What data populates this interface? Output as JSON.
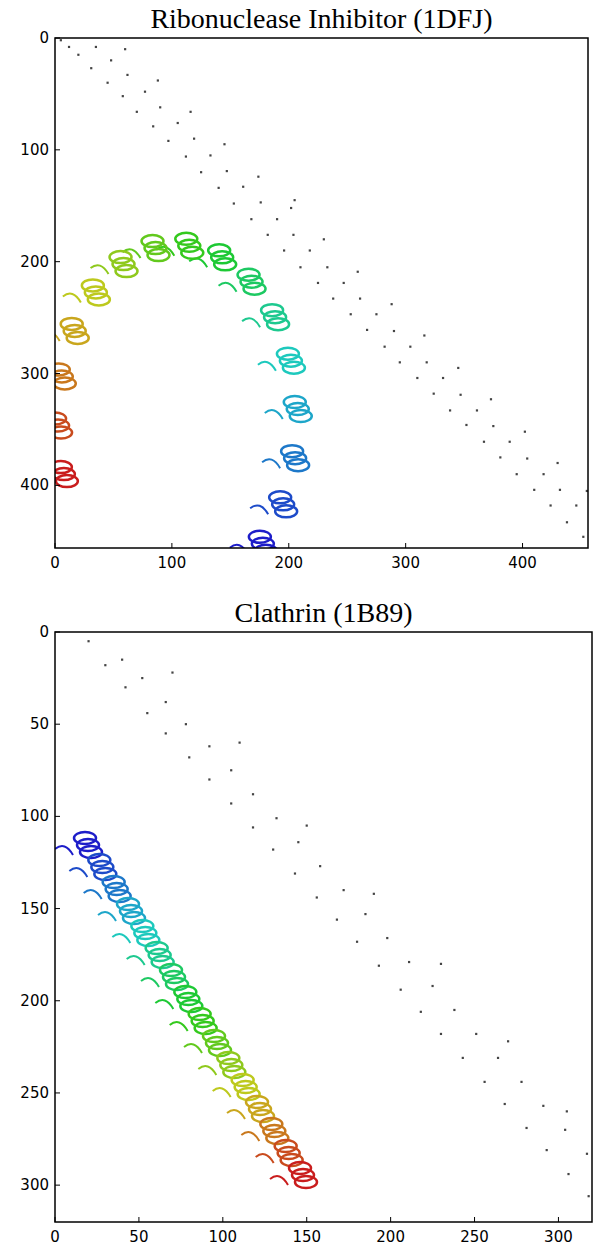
{
  "chart_data": [
    {
      "type": "scatter",
      "title": "Ribonuclease Inhibitor (1DFJ)",
      "color": "#444444",
      "marker": "square",
      "xlim": [
        0,
        456
      ],
      "ylim": [
        0,
        456
      ],
      "xticks": [
        0,
        100,
        200,
        300,
        400
      ],
      "yticks": [
        0,
        100,
        200,
        300,
        400
      ],
      "x": [
        5,
        12,
        20,
        31,
        45,
        58,
        70,
        84,
        97,
        112,
        125,
        140,
        153,
        168,
        182,
        196,
        210,
        225,
        238,
        253,
        267,
        282,
        295,
        310,
        324,
        338,
        352,
        367,
        381,
        395,
        410,
        424,
        438,
        452,
        35,
        48,
        62,
        77,
        90,
        105,
        119,
        133,
        147,
        161,
        176,
        190,
        204,
        218,
        233,
        247,
        261,
        275,
        290,
        304,
        318,
        332,
        347,
        361,
        375,
        389,
        404,
        418,
        432,
        446,
        60,
        88,
        116,
        145,
        174,
        202,
        230,
        259,
        288,
        316,
        345,
        373,
        402,
        430,
        455,
        205
      ],
      "y": [
        2,
        8,
        15,
        27,
        40,
        52,
        66,
        79,
        92,
        106,
        120,
        134,
        148,
        162,
        176,
        190,
        205,
        219,
        233,
        247,
        261,
        276,
        290,
        304,
        318,
        333,
        346,
        361,
        375,
        390,
        404,
        418,
        433,
        446,
        8,
        20,
        33,
        48,
        62,
        76,
        90,
        105,
        119,
        133,
        147,
        162,
        176,
        190,
        205,
        219,
        233,
        247,
        262,
        276,
        290,
        304,
        319,
        333,
        347,
        361,
        376,
        390,
        404,
        418,
        10,
        38,
        66,
        95,
        124,
        152,
        180,
        209,
        238,
        266,
        295,
        323,
        352,
        380,
        405,
        145
      ]
    },
    {
      "type": "scatter",
      "title": "Clathrin (1B89)",
      "color": "#444444",
      "marker": "square",
      "xlim": [
        0,
        320
      ],
      "ylim": [
        0,
        320
      ],
      "xticks": [
        0,
        50,
        100,
        150,
        200,
        250,
        300
      ],
      "yticks": [
        0,
        50,
        100,
        150,
        200,
        250,
        300
      ],
      "x": [
        20,
        30,
        42,
        55,
        66,
        80,
        92,
        105,
        118,
        130,
        143,
        156,
        168,
        180,
        193,
        206,
        218,
        230,
        243,
        256,
        268,
        281,
        293,
        306,
        318,
        40,
        52,
        66,
        78,
        92,
        105,
        118,
        132,
        145,
        158,
        172,
        185,
        198,
        211,
        225,
        238,
        251,
        264,
        278,
        291,
        304,
        317,
        70,
        110,
        150,
        190,
        230,
        270,
        305
      ],
      "y": [
        5,
        18,
        30,
        44,
        55,
        68,
        80,
        93,
        106,
        118,
        131,
        144,
        156,
        168,
        181,
        194,
        206,
        218,
        231,
        244,
        256,
        269,
        281,
        294,
        306,
        15,
        25,
        38,
        50,
        62,
        75,
        88,
        101,
        114,
        127,
        140,
        153,
        166,
        179,
        192,
        205,
        218,
        231,
        244,
        257,
        270,
        283,
        22,
        60,
        105,
        142,
        180,
        222,
        260
      ]
    }
  ]
}
